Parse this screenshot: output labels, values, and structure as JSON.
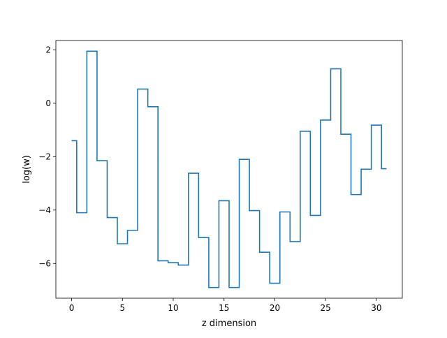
{
  "chart_data": {
    "type": "line",
    "drawstyle": "steps-mid",
    "title": "",
    "xlabel": "z dimension",
    "ylabel": "log(w)",
    "xlim": [
      -1.55,
      32.55
    ],
    "ylim": [
      -7.3,
      2.35
    ],
    "xticks": [
      0,
      5,
      10,
      15,
      20,
      25,
      30
    ],
    "yticks": [
      -6,
      -4,
      -2,
      0,
      2
    ],
    "grid": false,
    "series": [
      {
        "color": "#1f77b4",
        "x": [
          0,
          1,
          2,
          3,
          4,
          5,
          6,
          7,
          8,
          9,
          10,
          11,
          12,
          13,
          14,
          15,
          16,
          17,
          18,
          19,
          20,
          21,
          22,
          23,
          24,
          25,
          26,
          27,
          28,
          29,
          30,
          31
        ],
        "y": [
          -1.4,
          -4.1,
          1.95,
          -2.15,
          -4.28,
          -5.26,
          -4.76,
          0.53,
          -0.13,
          -5.9,
          -5.97,
          -6.06,
          -2.62,
          -5.03,
          -6.9,
          -3.65,
          -6.9,
          -2.1,
          -4.02,
          -5.58,
          -6.74,
          -4.07,
          -5.18,
          -1.05,
          -4.2,
          -0.63,
          1.29,
          -1.16,
          -3.42,
          -2.47,
          -0.82,
          -2.45
        ]
      }
    ]
  }
}
